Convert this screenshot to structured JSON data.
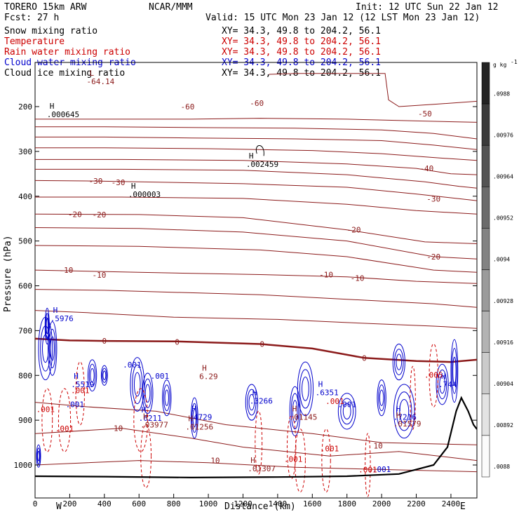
{
  "header": {
    "model": "TORERO  15km ARW",
    "center": "NCAR/MMM",
    "init": "Init: 12 UTC Sun 22 Jan 12",
    "fcst": "Fcst:   27 h",
    "valid": "Valid: 15 UTC Mon 23 Jan 12 (12 LST Mon 23 Jan 12)"
  },
  "fields": [
    {
      "name": "Snow mixing ratio",
      "xy": "XY=  34.3, 49.8 to 204.2, 56.1",
      "color": "#000000"
    },
    {
      "name": "Temperature",
      "xy": "XY=  34.3, 49.8 to 204.2, 56.1",
      "color": "#cc0000"
    },
    {
      "name": "Rain water mixing ratio",
      "xy": "XY=  34.3, 49.8 to 204.2, 56.1",
      "color": "#cc0000"
    },
    {
      "name": "Cloud water mixing ratio",
      "xy": "XY=  34.3, 49.8 to 204.2, 56.1",
      "color": "#0000cc"
    },
    {
      "name": "Cloud ice mixing ratio",
      "xy": "XY=  34.3, 49.8 to 204.2, 56.1",
      "color": "#000000"
    }
  ],
  "colors": {
    "temperature": "#8b1a1a",
    "rain": "#cc0000",
    "cloud_water": "#0000cc",
    "terrain": "#000000"
  },
  "chart_data": {
    "type": "heatmap",
    "xlabel": "Distance (km)",
    "ylabel": "Pressure (hPa)",
    "xlim": [
      0,
      2550
    ],
    "ylim": [
      1050,
      100
    ],
    "x_ticks": [
      0,
      200,
      400,
      600,
      800,
      1000,
      1200,
      1400,
      1600,
      1800,
      2000,
      2200,
      2400
    ],
    "y_ticks": [
      200,
      300,
      400,
      500,
      600,
      700,
      800,
      900,
      1000
    ],
    "left_end": "W",
    "right_end": "E",
    "colorbar": {
      "unit": "g kg",
      "unit_exp": "-1",
      "labels": [
        ".0988",
        ".00976",
        ".00964",
        ".00952",
        ".0094",
        ".00928",
        ".00916",
        ".00904",
        ".00892",
        ".0088"
      ]
    },
    "isotherm_labels": [
      {
        "text": "-60",
        "x": 880,
        "p": 200
      },
      {
        "text": "-60",
        "x": 1280,
        "p": 192
      },
      {
        "text": "-50",
        "x": 2250,
        "p": 216
      },
      {
        "text": "-40",
        "x": 2260,
        "p": 338
      },
      {
        "text": "-30",
        "x": 350,
        "p": 366
      },
      {
        "text": "-30",
        "x": 480,
        "p": 369
      },
      {
        "text": "-30",
        "x": 2300,
        "p": 406
      },
      {
        "text": "-20",
        "x": 230,
        "p": 440
      },
      {
        "text": "-20",
        "x": 370,
        "p": 441
      },
      {
        "text": "-20",
        "x": 1840,
        "p": 475
      },
      {
        "text": "-20",
        "x": 2300,
        "p": 535
      },
      {
        "text": "-10",
        "x": 180,
        "p": 565
      },
      {
        "text": "-10",
        "x": 370,
        "p": 576
      },
      {
        "text": "-10",
        "x": 1680,
        "p": 575
      },
      {
        "text": "-10",
        "x": 1860,
        "p": 583
      },
      {
        "text": "0",
        "x": 400,
        "p": 723
      },
      {
        "text": "0",
        "x": 820,
        "p": 725
      },
      {
        "text": "0",
        "x": 1310,
        "p": 730
      },
      {
        "text": "0",
        "x": 1900,
        "p": 761
      },
      {
        "text": "10",
        "x": 480,
        "p": 918
      },
      {
        "text": "10",
        "x": 1040,
        "p": 990
      },
      {
        "text": "10",
        "x": 1980,
        "p": 957
      }
    ],
    "extrema_labels": [
      {
        "kind": "L",
        "value": "-64.14",
        "x": 330,
        "p": 144
      },
      {
        "kind": "H",
        "value": ".000645",
        "x": 100,
        "p": 217
      },
      {
        "kind": "H",
        "value": ".002459",
        "x": 1250,
        "p": 328
      },
      {
        "kind": "H",
        "value": ".000003",
        "x": 570,
        "p": 396
      },
      {
        "kind": "H",
        "value": ".5976",
        "x": 120,
        "p": 673
      },
      {
        "kind": "H",
        "value": ".5519",
        "x": 240,
        "p": 820
      },
      {
        "kind": "H",
        "value": ".6211",
        "x": 630,
        "p": 895
      },
      {
        "kind": "H",
        "value": ".4729",
        "x": 920,
        "p": 893
      },
      {
        "kind": "H",
        "value": ".3266",
        "x": 1270,
        "p": 857
      },
      {
        "kind": "H",
        "value": ".6351",
        "x": 1650,
        "p": 838
      },
      {
        "kind": "H",
        "value": ".7216",
        "x": 2100,
        "p": 893
      },
      {
        "kind": "H",
        "value": ".744",
        "x": 2360,
        "p": 820
      },
      {
        "kind": "H",
        "value": "6.29",
        "x": 980,
        "p": 802
      },
      {
        "kind": "H",
        "value": ".01145",
        "x": 1500,
        "p": 893
      },
      {
        "kind": "H",
        "value": ".01307",
        "x": 1260,
        "p": 1008
      },
      {
        "kind": "H",
        "value": ".01256",
        "x": 900,
        "p": 915
      },
      {
        "kind": "H",
        "value": ".03977",
        "x": 640,
        "p": 910
      },
      {
        "kind": "H",
        "value": ".01579",
        "x": 2100,
        "p": 908
      }
    ],
    "small_labels": [
      {
        "text": ".001",
        "x": 560,
        "p": 778,
        "color": "#0000cc"
      },
      {
        "text": ".001",
        "x": 720,
        "p": 803,
        "color": "#0000cc"
      },
      {
        "text": ".001",
        "x": 230,
        "p": 866,
        "color": "#0000cc"
      },
      {
        "text": ".001",
        "x": 1800,
        "p": 866,
        "color": "#0000cc"
      },
      {
        "text": ".001",
        "x": 2000,
        "p": 1011,
        "color": "#0000cc"
      },
      {
        "text": ".001",
        "x": 260,
        "p": 835,
        "color": "#cc0000"
      },
      {
        "text": ".001",
        "x": 1730,
        "p": 859,
        "color": "#cc0000"
      },
      {
        "text": ".001",
        "x": 170,
        "p": 920,
        "color": "#cc0000"
      },
      {
        "text": ".001",
        "x": 1700,
        "p": 965,
        "color": "#cc0000"
      },
      {
        "text": ".001",
        "x": 1490,
        "p": 988,
        "color": "#cc0000"
      },
      {
        "text": ".001",
        "x": 1920,
        "p": 1012,
        "color": "#cc0000"
      },
      {
        "text": ".001",
        "x": 60,
        "p": 877,
        "color": "#cc0000"
      },
      {
        "text": ".005",
        "x": 2300,
        "p": 800,
        "color": "#cc0000"
      }
    ]
  }
}
